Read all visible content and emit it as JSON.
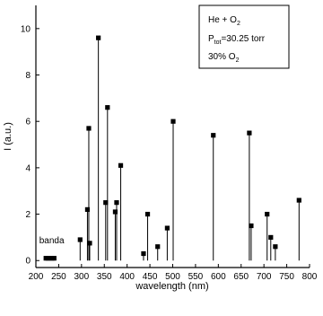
{
  "chart_data": {
    "type": "scatter",
    "style": "stem with square markers",
    "xlabel": "wavelength (nm)",
    "ylabel": "I (a.u.)",
    "xlim": [
      200,
      800
    ],
    "ylim": [
      -0.3,
      11
    ],
    "xticks": [
      200,
      250,
      300,
      350,
      400,
      450,
      500,
      550,
      600,
      650,
      700,
      750,
      800
    ],
    "yticks": [
      0,
      2,
      4,
      6,
      8,
      10
    ],
    "legend": {
      "placement": "top-right",
      "line1": "He + O",
      "line1_sub": "2",
      "line2_pre": "P",
      "line2_sub": "tot",
      "line2_post": "=30.25 torr",
      "line3_pre": "30% O",
      "line3_sub": "2"
    },
    "annotations": [
      {
        "text": "banda",
        "x": 227,
        "y": 0.75
      }
    ],
    "points": [
      {
        "x": 222,
        "y": 0.1
      },
      {
        "x": 228,
        "y": 0.1
      },
      {
        "x": 234,
        "y": 0.1
      },
      {
        "x": 240,
        "y": 0.1
      },
      {
        "x": 297,
        "y": 0.9
      },
      {
        "x": 313,
        "y": 2.2
      },
      {
        "x": 316,
        "y": 5.7
      },
      {
        "x": 318,
        "y": 0.75
      },
      {
        "x": 337,
        "y": 9.6
      },
      {
        "x": 353,
        "y": 2.5
      },
      {
        "x": 357,
        "y": 6.6
      },
      {
        "x": 374,
        "y": 2.1
      },
      {
        "x": 377,
        "y": 2.5
      },
      {
        "x": 386,
        "y": 4.1
      },
      {
        "x": 436,
        "y": 0.3
      },
      {
        "x": 445,
        "y": 2.0
      },
      {
        "x": 467,
        "y": 0.6
      },
      {
        "x": 488,
        "y": 1.4
      },
      {
        "x": 501,
        "y": 6.0
      },
      {
        "x": 589,
        "y": 5.4
      },
      {
        "x": 668,
        "y": 5.5
      },
      {
        "x": 672,
        "y": 1.5
      },
      {
        "x": 707,
        "y": 2.0
      },
      {
        "x": 715,
        "y": 1.0
      },
      {
        "x": 725,
        "y": 0.6
      },
      {
        "x": 777,
        "y": 2.6
      }
    ]
  }
}
